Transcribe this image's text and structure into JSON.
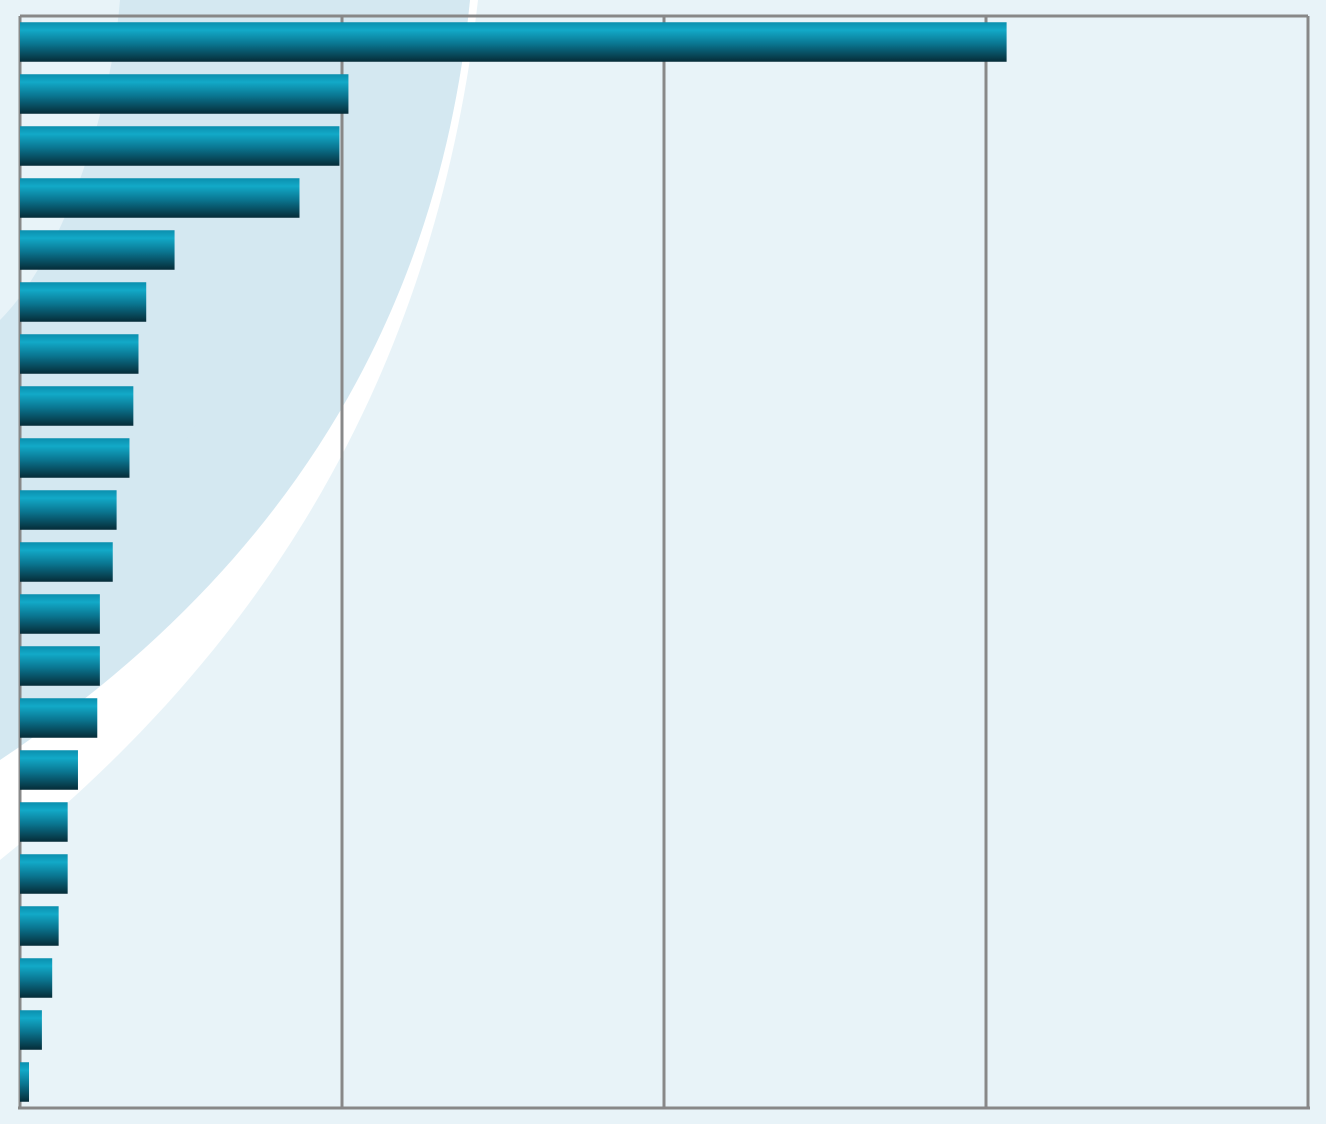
{
  "chart_data": {
    "type": "hbar",
    "categories": [
      null,
      null,
      null,
      null,
      null,
      null,
      null,
      null,
      null,
      null,
      null,
      null,
      null,
      null,
      null,
      null,
      null,
      null,
      null,
      null,
      null
    ],
    "values": [
      76.6,
      25.5,
      24.8,
      21.7,
      12.0,
      9.8,
      9.2,
      8.8,
      8.5,
      7.5,
      7.2,
      6.2,
      6.2,
      6.0,
      4.5,
      3.7,
      3.7,
      3.0,
      2.5,
      1.7,
      0.7
    ],
    "color": "#0a9fc0",
    "xlim": [
      0,
      100
    ],
    "xticks": [
      0,
      25,
      50,
      75,
      100
    ],
    "grid": true
  }
}
